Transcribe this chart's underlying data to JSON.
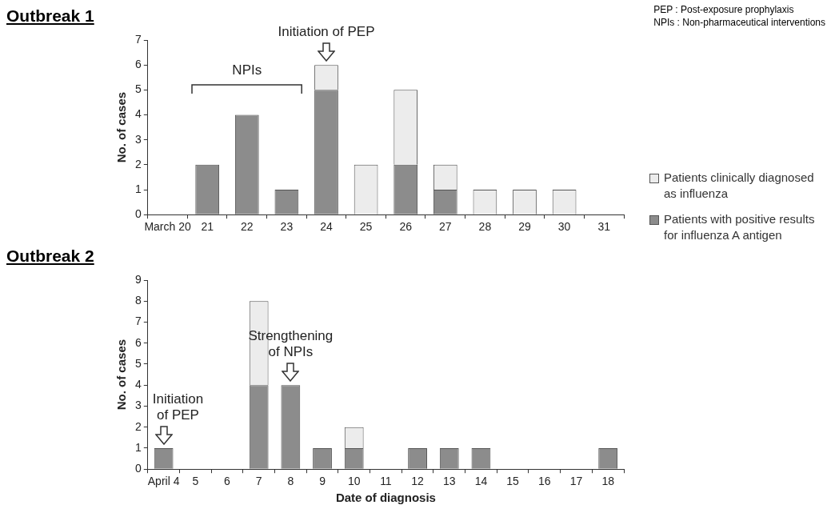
{
  "chart_data": [
    {
      "type": "bar",
      "title": "Outbreak 1",
      "ylabel": "No. of cases",
      "stacked": true,
      "legend": "right",
      "categories": [
        "March 20",
        "21",
        "22",
        "23",
        "24",
        "25",
        "26",
        "27",
        "28",
        "29",
        "30",
        "31"
      ],
      "series": [
        {
          "name": "Patients with positive results for influenza A antigen",
          "color": "#8c8c8c",
          "values": [
            0,
            2,
            4,
            1,
            5,
            0,
            2,
            1,
            0,
            0,
            0,
            0
          ]
        },
        {
          "name": "Patients clinically diagnosed as influenza",
          "color": "#ececec",
          "values": [
            0,
            0,
            0,
            0,
            1,
            2,
            3,
            1,
            1,
            1,
            1,
            0
          ]
        }
      ],
      "ylim": [
        0,
        7
      ],
      "yticks": [
        0,
        1,
        2,
        3,
        4,
        5,
        6,
        7
      ],
      "annotations": [
        {
          "text": "Initiation of PEP",
          "x": "24",
          "y": 6
        },
        "NPIs",
        "PEP : Post-exposure prophylaxis",
        "NPIs : Non-pharmaceutical interventions"
      ]
    },
    {
      "type": "bar",
      "title": "Outbreak 2",
      "ylabel": "No. of cases",
      "xlabel": "Date of diagnosis",
      "stacked": true,
      "categories": [
        "April 4",
        "5",
        "6",
        "7",
        "8",
        "9",
        "10",
        "11",
        "12",
        "13",
        "14",
        "15",
        "16",
        "17",
        "18"
      ],
      "series": [
        {
          "color": "#8c8c8c",
          "values": [
            1,
            0,
            0,
            4,
            4,
            1,
            1,
            0,
            1,
            1,
            1,
            0,
            0,
            0,
            1
          ]
        },
        {
          "color": "#ececec",
          "values": [
            0,
            0,
            0,
            4,
            0,
            0,
            1,
            0,
            0,
            0,
            0,
            0,
            0,
            0,
            0
          ]
        }
      ],
      "ylim": [
        0,
        9
      ],
      "yticks": [
        0,
        1,
        2,
        3,
        4,
        5,
        6,
        7,
        8,
        9
      ],
      "annotations": [
        {
          "text": "Initiation\nof PEP",
          "x": "April 4",
          "y": 1
        },
        {
          "text": "Strengthening\nof NPIs",
          "x": "8",
          "y": 4
        }
      ]
    }
  ]
}
